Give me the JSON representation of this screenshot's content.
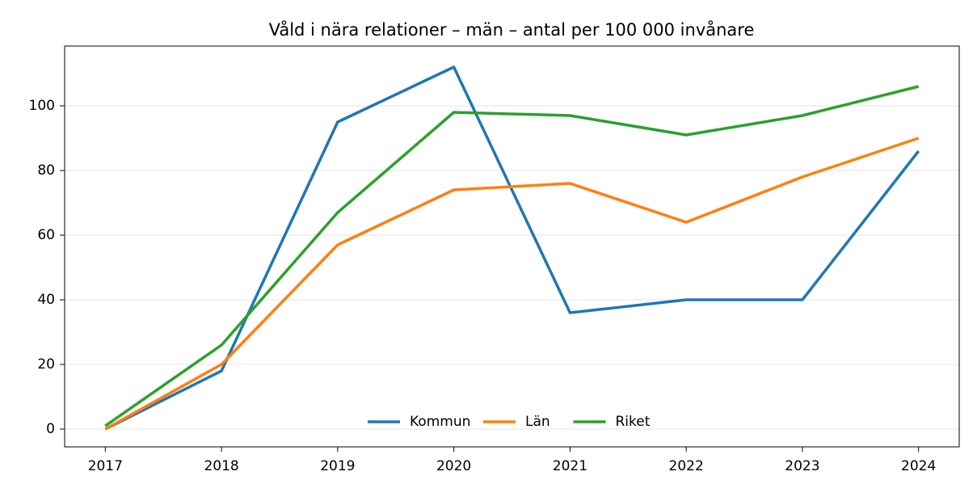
{
  "chart_data": {
    "type": "line",
    "title": "Våld i nära relationer – män – antal per 100 000 invånare",
    "x": [
      2017,
      2018,
      2019,
      2020,
      2021,
      2022,
      2023,
      2024
    ],
    "series": [
      {
        "name": "Kommun",
        "color": "#1f77b4",
        "values": [
          0,
          18,
          95,
          112,
          36,
          40,
          40,
          86
        ]
      },
      {
        "name": "Län",
        "color": "#ff7f0e",
        "values": [
          0,
          20,
          57,
          74,
          76,
          64,
          78,
          90
        ]
      },
      {
        "name": "Riket",
        "color": "#2ca02c",
        "values": [
          1,
          26,
          67,
          98,
          97,
          91,
          97,
          106
        ]
      }
    ],
    "xlim": [
      2016.65,
      2024.35
    ],
    "xticks": [
      2017,
      2018,
      2019,
      2020,
      2021,
      2022,
      2023,
      2024
    ],
    "ylim": [
      -5.5,
      118.5
    ],
    "yticks": [
      0,
      20,
      40,
      60,
      80,
      100
    ],
    "grid": true,
    "legend": "lower center"
  }
}
